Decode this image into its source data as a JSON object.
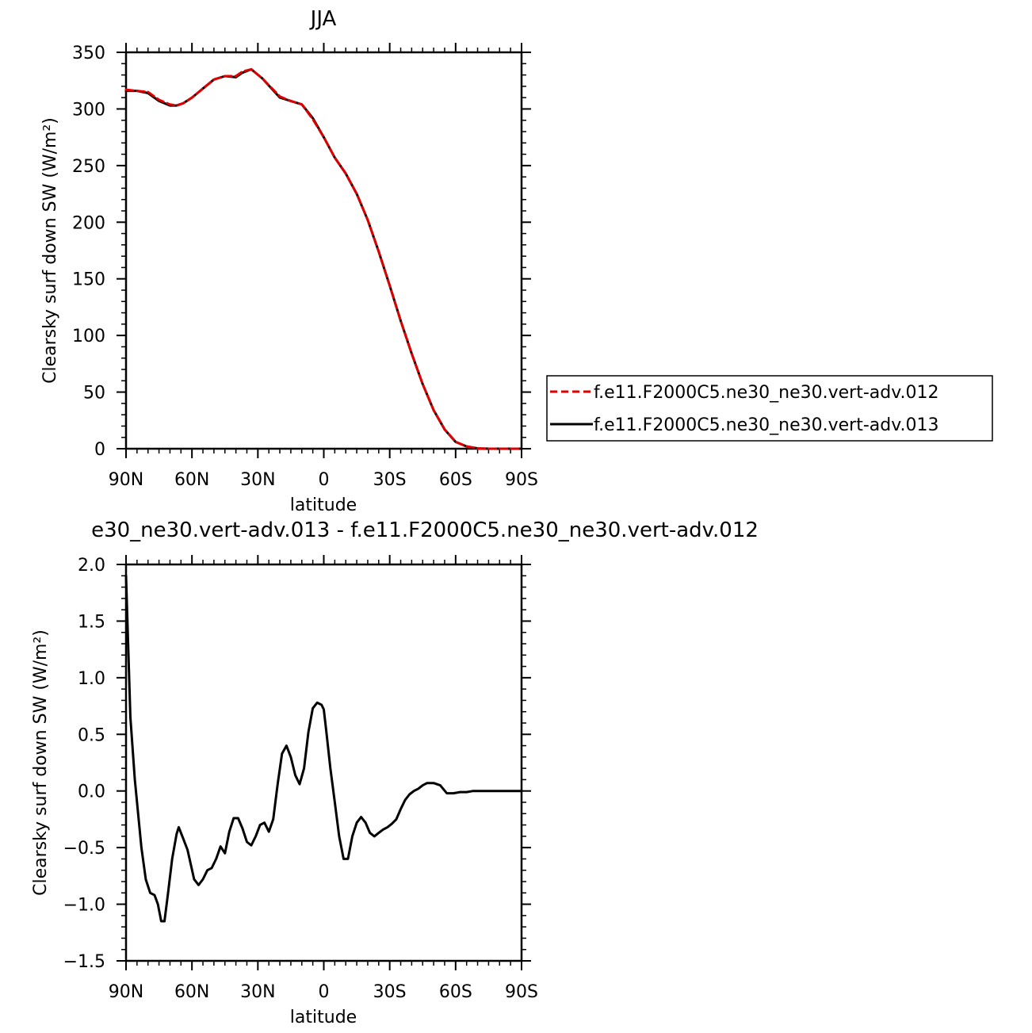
{
  "chart_data": [
    {
      "type": "line",
      "title": "JJA",
      "xlabel": "latitude",
      "ylabel": "Clearsky surf down SW (W/m²)",
      "xlim": [
        90,
        -90
      ],
      "ylim": [
        0,
        350
      ],
      "x_tick_values": [
        90,
        60,
        30,
        0,
        -30,
        -60,
        -90
      ],
      "x_tick_labels": [
        "90N",
        "60N",
        "30N",
        "0",
        "30S",
        "60S",
        "90S"
      ],
      "y_tick_values": [
        0,
        50,
        100,
        150,
        200,
        250,
        300,
        350
      ],
      "y_tick_labels": [
        "0",
        "50",
        "100",
        "150",
        "200",
        "250",
        "300",
        "350"
      ],
      "legend_position": "right",
      "series": [
        {
          "name": "f.e11.F2000C5.ne30_ne30.vert-adv.012",
          "color": "#e00000",
          "dash": "dashed",
          "x": [
            90,
            85,
            80,
            75,
            70,
            67,
            64,
            60,
            55,
            50,
            45,
            40,
            37,
            33,
            28,
            20,
            15,
            10,
            5,
            0,
            -5,
            -10,
            -15,
            -20,
            -25,
            -30,
            -35,
            -40,
            -45,
            -50,
            -55,
            -60,
            -65,
            -70,
            -75,
            -80,
            -85,
            -90
          ],
          "y": [
            317,
            316,
            315,
            308,
            304,
            303,
            305,
            310,
            318,
            326,
            329,
            329,
            333,
            335,
            327,
            311,
            307,
            304,
            291,
            275,
            257,
            243,
            225,
            202,
            174,
            144,
            113,
            84,
            57,
            34,
            17,
            6,
            2,
            0.3,
            0,
            0,
            0,
            0
          ]
        },
        {
          "name": "f.e11.F2000C5.ne30_ne30.vert-adv.013",
          "color": "#000000",
          "dash": "solid",
          "x": [
            90,
            85,
            80,
            75,
            70,
            67,
            64,
            60,
            55,
            50,
            45,
            40,
            37,
            33,
            28,
            20,
            15,
            10,
            5,
            0,
            -5,
            -10,
            -15,
            -20,
            -25,
            -30,
            -35,
            -40,
            -45,
            -50,
            -55,
            -60,
            -65,
            -70,
            -75,
            -80,
            -85,
            -90
          ],
          "y": [
            316,
            316,
            314,
            307,
            303,
            303,
            305,
            310,
            318,
            326,
            329,
            328,
            332,
            335,
            327,
            310,
            307,
            304,
            292,
            275,
            257,
            243,
            225,
            202,
            174,
            144,
            113,
            84,
            57,
            34,
            17,
            6,
            2,
            0.3,
            0,
            0,
            0,
            0
          ]
        }
      ]
    },
    {
      "type": "line",
      "title": "e30_ne30.vert-adv.013 - f.e11.F2000C5.ne30_ne30.vert-adv.012",
      "xlabel": "latitude",
      "ylabel": "Clearsky surf down SW (W/m²)",
      "xlim": [
        90,
        -90
      ],
      "ylim": [
        -1.5,
        2.0
      ],
      "x_tick_values": [
        90,
        60,
        30,
        0,
        -30,
        -60,
        -90
      ],
      "x_tick_labels": [
        "90N",
        "60N",
        "30N",
        "0",
        "30S",
        "60S",
        "90S"
      ],
      "y_tick_values": [
        -1.5,
        -1.0,
        -0.5,
        0.0,
        0.5,
        1.0,
        1.5,
        2.0
      ],
      "y_tick_labels": [
        "−1.5",
        "−1.0",
        "−0.5",
        "0.0",
        "0.5",
        "1.0",
        "1.5",
        "2.0"
      ],
      "series": [
        {
          "color": "#000000",
          "dash": "solid",
          "x": [
            90,
            88,
            86,
            83,
            81,
            79,
            77,
            75.5,
            74,
            72.5,
            71,
            69,
            67,
            66,
            64,
            62,
            59,
            57,
            55,
            53,
            51,
            49,
            47,
            45,
            43,
            41,
            39,
            37,
            35,
            33,
            31,
            29,
            27,
            25,
            23,
            21,
            19,
            17,
            15,
            13,
            11,
            9,
            7,
            5,
            3,
            1,
            0,
            -1,
            -3,
            -5,
            -7,
            -9,
            -11,
            -13,
            -15,
            -17,
            -19,
            -21,
            -23,
            -25,
            -27,
            -29,
            -31,
            -33,
            -35,
            -37,
            -39,
            -41,
            -43,
            -45,
            -47,
            -50,
            -53,
            -56,
            -59,
            -62,
            -65,
            -68,
            -72,
            -78,
            -84,
            -90
          ],
          "y": [
            1.9,
            0.65,
            0.1,
            -0.5,
            -0.78,
            -0.9,
            -0.92,
            -1.0,
            -1.15,
            -1.15,
            -0.92,
            -0.6,
            -0.38,
            -0.32,
            -0.42,
            -0.52,
            -0.78,
            -0.83,
            -0.78,
            -0.7,
            -0.68,
            -0.6,
            -0.49,
            -0.55,
            -0.36,
            -0.24,
            -0.24,
            -0.33,
            -0.45,
            -0.48,
            -0.4,
            -0.3,
            -0.28,
            -0.36,
            -0.25,
            0.06,
            0.33,
            0.4,
            0.3,
            0.14,
            0.06,
            0.2,
            0.52,
            0.73,
            0.78,
            0.76,
            0.72,
            0.55,
            0.2,
            -0.1,
            -0.4,
            -0.6,
            -0.6,
            -0.4,
            -0.28,
            -0.23,
            -0.28,
            -0.37,
            -0.4,
            -0.37,
            -0.34,
            -0.32,
            -0.29,
            -0.25,
            -0.16,
            -0.08,
            -0.03,
            0.0,
            0.02,
            0.05,
            0.07,
            0.07,
            0.05,
            -0.02,
            -0.02,
            -0.01,
            -0.01,
            0.0,
            0.0,
            0.0,
            0.0,
            0.0
          ]
        }
      ]
    }
  ]
}
